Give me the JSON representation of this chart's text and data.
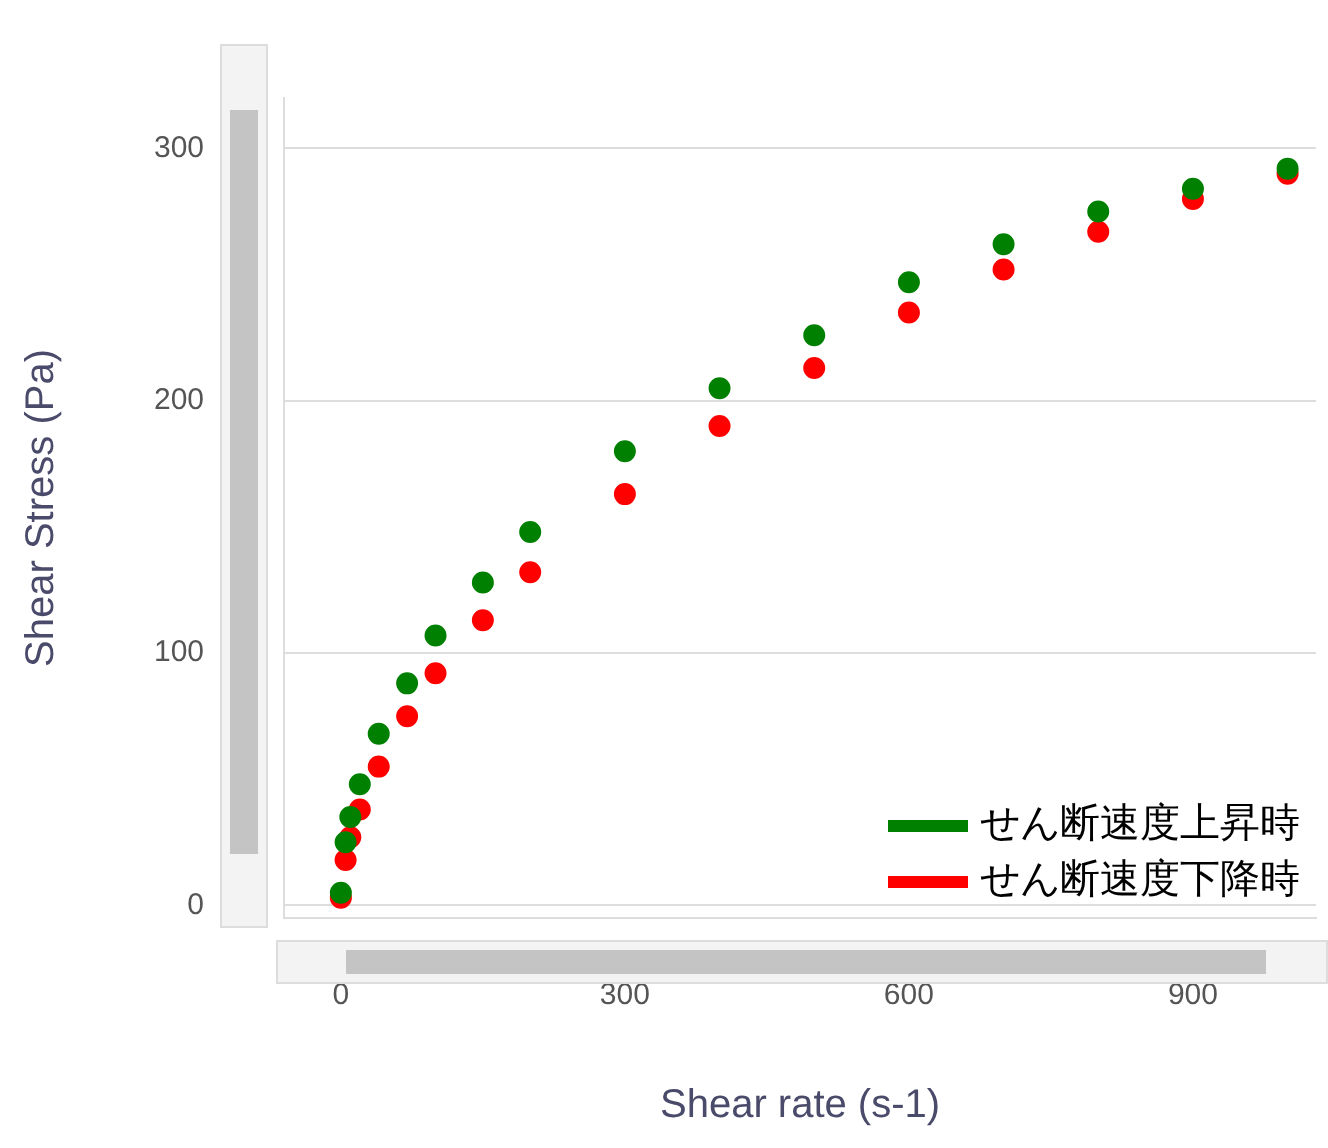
{
  "chart_data": {
    "type": "scatter",
    "xlabel": "Shear rate (s-1)",
    "ylabel": "Shear Stress (Pa)",
    "xlim": [
      -60,
      1030
    ],
    "ylim": [
      -5,
      320
    ],
    "xticks": [
      0,
      300,
      600,
      900
    ],
    "yticks": [
      0,
      100,
      200,
      300
    ],
    "grid": "y",
    "legend": "bottom right",
    "marker": "circle",
    "series": [
      {
        "name": "せん断速度上昇時",
        "color": "#008000",
        "x": [
          0,
          5,
          10,
          20,
          40,
          70,
          100,
          150,
          200,
          300,
          400,
          500,
          600,
          700,
          800,
          900,
          1000
        ],
        "values": [
          5,
          25,
          35,
          48,
          68,
          88,
          107,
          128,
          148,
          180,
          205,
          226,
          247,
          262,
          275,
          284,
          292
        ]
      },
      {
        "name": "せん断速度下降時",
        "color": "#ff0000",
        "x": [
          0,
          5,
          10,
          20,
          40,
          70,
          100,
          150,
          200,
          300,
          400,
          500,
          600,
          700,
          800,
          900,
          1000
        ],
        "values": [
          3,
          18,
          27,
          38,
          55,
          75,
          92,
          113,
          132,
          163,
          190,
          213,
          235,
          252,
          267,
          280,
          290
        ]
      }
    ]
  }
}
